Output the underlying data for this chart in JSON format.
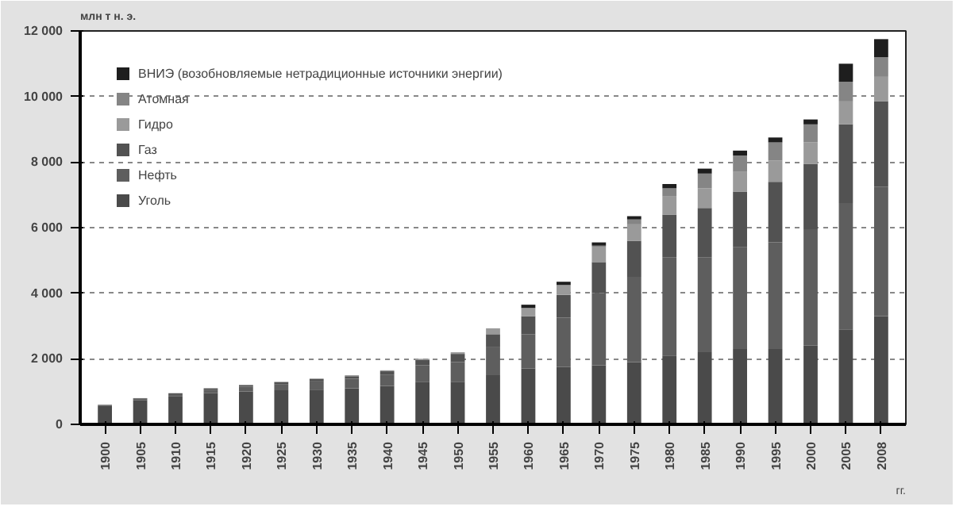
{
  "chart_data": {
    "type": "bar",
    "stacked": true,
    "xlabel": "гг.",
    "ylabel": "млн т н. э.",
    "categories": [
      "1900",
      "1905",
      "1910",
      "1915",
      "1920",
      "1925",
      "1930",
      "1935",
      "1940",
      "1945",
      "1950",
      "1955",
      "1960",
      "1965",
      "1970",
      "1975",
      "1980",
      "1985",
      "1990",
      "1995",
      "2000",
      "2005",
      "2008"
    ],
    "series": [
      {
        "name": "Уголь",
        "color": "#4a4a4a",
        "values": [
          560,
          730,
          850,
          960,
          1000,
          1040,
          1060,
          1100,
          1170,
          1300,
          1300,
          1500,
          1700,
          1750,
          1800,
          1900,
          2100,
          2200,
          2300,
          2300,
          2400,
          2900,
          3300
        ]
      },
      {
        "name": "Нефть",
        "color": "#5e5e5e",
        "values": [
          30,
          50,
          70,
          100,
          150,
          190,
          250,
          290,
          350,
          500,
          600,
          850,
          1050,
          1500,
          2200,
          2600,
          3000,
          2900,
          3100,
          3250,
          3550,
          3850,
          3950
        ]
      },
      {
        "name": "Газ",
        "color": "#525252",
        "values": [
          10,
          20,
          30,
          40,
          50,
          60,
          70,
          80,
          100,
          160,
          250,
          400,
          550,
          700,
          950,
          1100,
          1300,
          1500,
          1700,
          1850,
          2000,
          2400,
          2600
        ]
      },
      {
        "name": "Гидро",
        "color": "#9a9a9a",
        "values": [
          0,
          0,
          0,
          0,
          0,
          10,
          20,
          30,
          30,
          40,
          50,
          180,
          250,
          300,
          450,
          500,
          550,
          600,
          600,
          650,
          650,
          700,
          750
        ]
      },
      {
        "name": "Атомная",
        "color": "#858585",
        "values": [
          0,
          0,
          0,
          0,
          0,
          0,
          0,
          0,
          0,
          0,
          0,
          0,
          0,
          0,
          50,
          150,
          250,
          450,
          500,
          550,
          550,
          600,
          600
        ]
      },
      {
        "name": "ВНИЭ (возобновляемые нетрадиционные источники энергии)",
        "color": "#1e1e1e",
        "values": [
          0,
          0,
          0,
          0,
          0,
          0,
          0,
          0,
          0,
          0,
          0,
          0,
          100,
          100,
          100,
          100,
          130,
          150,
          150,
          150,
          150,
          550,
          550
        ]
      }
    ],
    "ylim": [
      0,
      12000
    ],
    "yticks": [
      0,
      {
        "value": 2000,
        "label": "2 000"
      },
      {
        "value": 4000,
        "label": "4 000"
      },
      {
        "value": 6000,
        "label": "6 000"
      },
      {
        "value": 8000,
        "label": "8 000"
      },
      {
        "value": 10000,
        "label": "10 000"
      },
      {
        "value": 12000,
        "label": "12 000"
      }
    ],
    "grid": "y",
    "legend": "top left"
  }
}
